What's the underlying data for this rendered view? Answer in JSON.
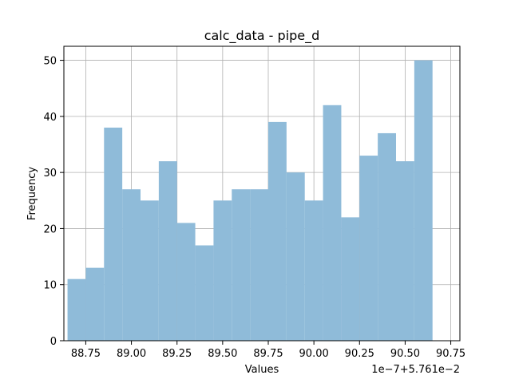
{
  "chart_data": {
    "type": "bar",
    "title": "calc_data - pipe_d",
    "xlabel": "Values",
    "ylabel": "Frequency",
    "offset_text": "1e−7+5.761e−2",
    "x_tick_labels": [
      "88.75",
      "89.00",
      "89.25",
      "89.50",
      "89.75",
      "90.00",
      "90.25",
      "90.50",
      "90.75"
    ],
    "y_tick_labels": [
      "0",
      "10",
      "20",
      "30",
      "40",
      "50"
    ],
    "xlim": [
      88.63,
      90.8
    ],
    "ylim": [
      0,
      52.5
    ],
    "bin_edges": [
      88.65,
      88.75,
      88.85,
      88.95,
      89.05,
      89.15,
      89.25,
      89.35,
      89.45,
      89.55,
      89.65,
      89.75,
      89.85,
      89.95,
      90.05,
      90.15,
      90.25,
      90.35,
      90.45,
      90.55,
      90.65
    ],
    "values": [
      11,
      13,
      38,
      27,
      25,
      32,
      21,
      17,
      25,
      27,
      27,
      39,
      30,
      25,
      42,
      22,
      33,
      37,
      32,
      50
    ],
    "bar_color": "#8fbbd9",
    "grid": true
  }
}
